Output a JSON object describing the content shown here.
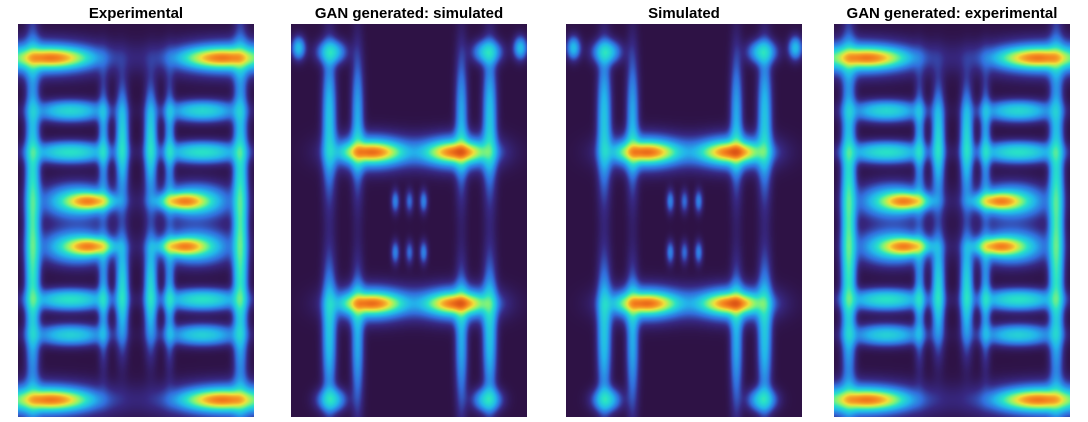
{
  "panels": [
    {
      "title": "Experimental",
      "pattern": "experimental"
    },
    {
      "title": "GAN generated: simulated",
      "pattern": "simulated"
    },
    {
      "title": "Simulated",
      "pattern": "simulated"
    },
    {
      "title": "GAN generated: experimental",
      "pattern": "experimental"
    }
  ],
  "colormap": "turbo-like (dark purple background to red peaks)",
  "colors": {
    "background": "#2e1245",
    "low": "#3d2c8d",
    "mid": "#25d8d0",
    "high": "#f5d33a",
    "peak": "#c7170c"
  }
}
